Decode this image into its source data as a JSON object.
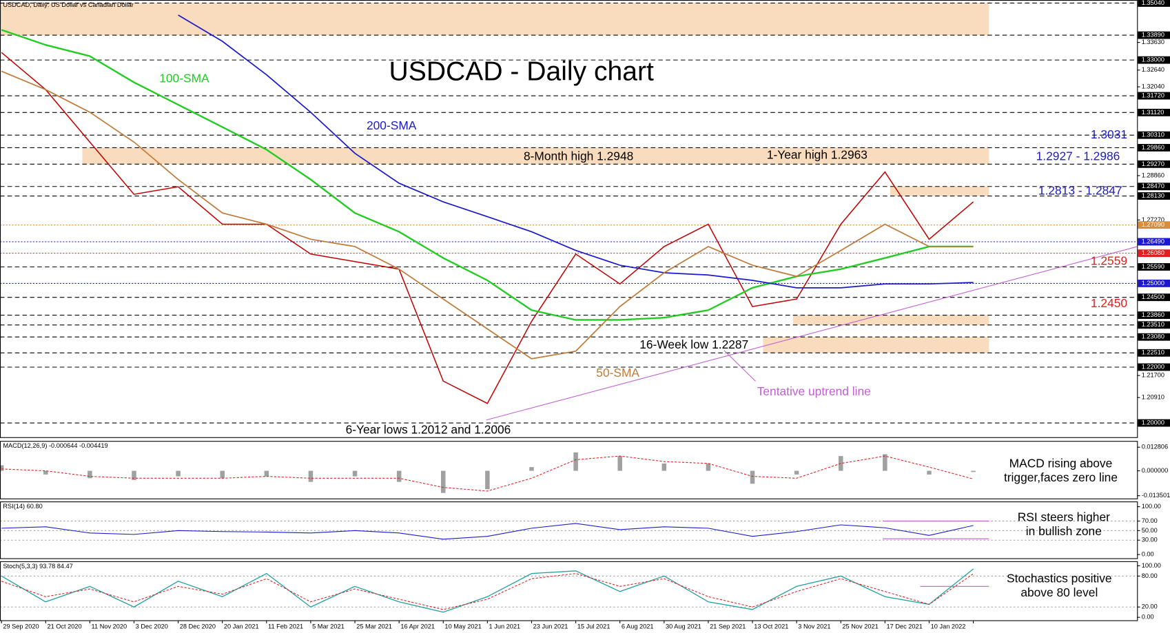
{
  "chart_data": [
    {
      "type": "line",
      "label": "USDCAD, Daily:  US Dollar vs Canadian Dollar",
      "title": "USDCAD - Daily chart",
      "categories": [
        "29 Sep 2020",
        "21 Oct 2020",
        "11 Nov 2020",
        "3 Dec 2020",
        "28 Dec 2020",
        "20 Jan 2021",
        "11 Feb 2021",
        "5 Mar 2021",
        "25 Mar 2021",
        "16 Apr 2021",
        "10 May 2021",
        "1 Jun 2021",
        "23 Jun 2021",
        "15 Jul 2021",
        "6 Aug 2021",
        "30 Aug 2021",
        "21 Sep 2021",
        "13 Oct 2021",
        "3 Nov 2021",
        "25 Nov 2021",
        "17 Dec 2021",
        "10 Jan 2022",
        null
      ],
      "series": [
        {
          "color": "#c00000",
          "values": [
            1.3327,
            1.3194,
            1.3006,
            1.2819,
            1.2846,
            1.2712,
            1.2712,
            1.2605,
            1.2578,
            1.2551,
            1.215,
            1.207,
            1.2364,
            1.2605,
            1.2498,
            1.2632,
            1.2712,
            1.2417,
            1.2444,
            1.2712,
            1.2899,
            1.2658,
            1.2792
          ]
        },
        {
          "name": "100-SMA",
          "color": "#22cc22",
          "values": [
            1.3408,
            1.3354,
            1.3314,
            1.322,
            1.314,
            1.306,
            1.2979,
            1.2872,
            1.2752,
            1.2685,
            1.2591,
            1.2511,
            1.2404,
            1.2369,
            1.2369,
            1.2377,
            1.2404,
            1.2484,
            1.2525,
            1.2551,
            1.2591,
            1.2632,
            1.2632
          ]
        },
        {
          "name": "200-SMA",
          "color": "#1a1acc",
          "values": [
            null,
            null,
            null,
            null,
            1.3461,
            1.3367,
            1.3247,
            1.3113,
            1.2966,
            1.2859,
            1.2792,
            1.2739,
            1.2685,
            1.2618,
            1.2565,
            1.2538,
            1.253,
            1.2511,
            1.2484,
            1.2484,
            1.2498,
            1.2498,
            1.2503
          ]
        },
        {
          "name": "50-SMA",
          "color": "#c07a3a",
          "values": [
            1.326,
            1.3194,
            1.3113,
            1.3006,
            1.2872,
            1.2752,
            1.2712,
            1.2658,
            1.2632,
            1.2551,
            1.2444,
            1.2337,
            1.223,
            1.2257,
            1.2417,
            1.2538,
            1.2632,
            1.2565,
            1.2525,
            1.2618,
            1.2712,
            1.2632,
            1.2632
          ]
        }
      ],
      "ylim": [
        1.1949,
        1.3515
      ],
      "yticks": [
        {
          "value": 1.3363,
          "label": "1.33630"
        },
        {
          "value": 1.3264,
          "label": "1.32640"
        },
        {
          "value": 1.3204,
          "label": "1.32040"
        },
        {
          "value": 1.2886,
          "label": "1.28860"
        },
        {
          "value": 1.2727,
          "label": "1.27270"
        },
        {
          "value": 1.217,
          "label": "1.21700"
        },
        {
          "value": 1.2091,
          "label": "1.20910"
        }
      ],
      "levels": [
        {
          "value": 1.3504,
          "label": "1.35040",
          "color": "#000000"
        },
        {
          "value": 1.3389,
          "label": "1.33890",
          "color": "#000000"
        },
        {
          "value": 1.33,
          "label": "1.33000",
          "color": "#000000"
        },
        {
          "value": 1.3172,
          "label": "1.31720",
          "color": "#000000"
        },
        {
          "value": 1.3112,
          "label": "1.31120",
          "color": "#000000"
        },
        {
          "value": 1.3031,
          "label": "1.30310",
          "color": "#000000"
        },
        {
          "value": 1.2986,
          "label": "1.29860",
          "color": "#000000"
        },
        {
          "value": 1.2927,
          "label": "1.29270",
          "color": "#000000"
        },
        {
          "value": 1.2847,
          "label": "1.28470",
          "color": "#000000"
        },
        {
          "value": 1.2813,
          "label": "1.28130",
          "color": "#000000"
        },
        {
          "value": 1.2709,
          "label": "1.27090",
          "color": "#d98c3a"
        },
        {
          "value": 1.2649,
          "label": "1.26490",
          "color": "#1a1acc"
        },
        {
          "value": 1.2608,
          "label": "1.26080",
          "color": "#e02020"
        },
        {
          "value": 1.2559,
          "label": "1.25590",
          "color": "#000000"
        },
        {
          "value": 1.25,
          "label": "1.25000",
          "color": "#1a1acc"
        },
        {
          "value": 1.245,
          "label": "1.24500",
          "color": "#000000"
        },
        {
          "value": 1.2386,
          "label": "1.23860",
          "color": "#000000"
        },
        {
          "value": 1.2351,
          "label": "1.23510",
          "color": "#000000"
        },
        {
          "value": 1.2308,
          "label": "1.23080",
          "color": "#000000"
        },
        {
          "value": 1.2251,
          "label": "1.22510",
          "color": "#000000"
        },
        {
          "value": 1.22,
          "label": "1.22000",
          "color": "#000000"
        },
        {
          "value": 1.2,
          "label": "1.20000",
          "color": "#000000"
        }
      ],
      "zones": [
        [
          1.3389,
          1.3504
        ],
        [
          1.2927,
          1.2986
        ],
        [
          1.2813,
          1.2847
        ],
        [
          1.2351,
          1.2386
        ],
        [
          1.2251,
          1.2308
        ]
      ],
      "zone_color": "#f9dcbd",
      "annotations": [
        {
          "text": "8-Month high 1.2948",
          "color": "#000000"
        },
        {
          "text": "1-Year high 1.2963",
          "color": "#000000"
        },
        {
          "text": "1.3031",
          "color": "#1a1acc"
        },
        {
          "text": "1.2927 - 1.2986",
          "color": "#1a1acc"
        },
        {
          "text": "1.2813 - 1.2847",
          "color": "#1a1acc"
        },
        {
          "text": "1.2559",
          "color": "#e02020"
        },
        {
          "text": "1.2450",
          "color": "#e02020"
        },
        {
          "text": "16-Week low 1.2287",
          "color": "#000000"
        },
        {
          "text": "Tentative uptrend line",
          "color": "#c060d0"
        },
        {
          "text": "6-Year lows 1.2012 and 1.2006",
          "color": "#000000"
        }
      ]
    },
    {
      "type": "macd",
      "label": "MACD(12,26,9) -0.000644 -0.004419",
      "series": [
        {
          "color": "#a0a0a0",
          "values": [
            0.003,
            -0.002,
            -0.004,
            -0.005,
            -0.003,
            -0.004,
            -0.003,
            -0.006,
            -0.003,
            -0.006,
            -0.012,
            -0.01,
            0.002,
            0.01,
            0.008,
            0.004,
            0.004,
            -0.007,
            -0.002,
            0.008,
            0.009,
            -0.002,
            -0.000644
          ]
        },
        {
          "color": "#e02020",
          "values": [
            0.001,
            0,
            -0.003,
            -0.004,
            -0.004,
            -0.004,
            -0.003,
            -0.004,
            -0.004,
            -0.004,
            -0.009,
            -0.011,
            -0.004,
            0.006,
            0.008,
            0.005,
            0.004,
            -0.003,
            -0.004,
            0.004,
            0.008,
            0.002,
            -0.004419
          ]
        }
      ],
      "ylim": [
        -0.015,
        0.0162
      ],
      "yticks": [
        0.012806,
        {
          "value": 0,
          "label": "0.000000"
        },
        -0.013501
      ],
      "annotation": [
        "MACD rising above",
        "trigger,faces zero line"
      ]
    },
    {
      "type": "rsi",
      "label": "RSI(14) 60.80",
      "series": [
        {
          "color": "#1a1acc",
          "values": [
            55,
            58,
            45,
            42,
            50,
            48,
            47,
            45,
            50,
            45,
            32,
            38,
            55,
            65,
            52,
            58,
            55,
            38,
            48,
            62,
            56,
            40,
            60.8
          ]
        }
      ],
      "ylim": [
        -7.8,
        110.9
      ],
      "yticks": [
        {
          "value": 100,
          "label": "100.00"
        },
        {
          "value": 70,
          "label": "70.00"
        },
        {
          "value": 50,
          "label": "50.00"
        },
        {
          "value": 30,
          "label": "30.00"
        },
        {
          "value": 0,
          "label": "0.00"
        }
      ],
      "guides": [
        70,
        33
      ],
      "annotation": [
        "RSI steers higher",
        "in bullish zone"
      ]
    },
    {
      "type": "stoch",
      "label": "Stoch(5,3,3) 93.78 84.47",
      "series": [
        {
          "color": "#20a0a0",
          "values": [
            80,
            30,
            60,
            20,
            70,
            40,
            85,
            20,
            60,
            30,
            10,
            40,
            85,
            90,
            50,
            80,
            30,
            15,
            60,
            80,
            40,
            25,
            93.78
          ]
        },
        {
          "color": "#e02020",
          "values": [
            70,
            40,
            55,
            30,
            60,
            45,
            75,
            30,
            55,
            35,
            15,
            35,
            75,
            85,
            60,
            75,
            40,
            20,
            50,
            75,
            50,
            25,
            84.47
          ]
        }
      ],
      "ylim": [
        -5.8,
        108.7
      ],
      "yticks": [
        {
          "value": 100,
          "label": "100.00"
        },
        {
          "value": 80,
          "label": "80.00"
        },
        {
          "value": 20,
          "label": "20.00"
        },
        {
          "value": 0,
          "label": "0.00"
        }
      ],
      "guides": [
        60
      ],
      "annotation": [
        "Stochastics positive",
        "above 80 level"
      ]
    }
  ]
}
